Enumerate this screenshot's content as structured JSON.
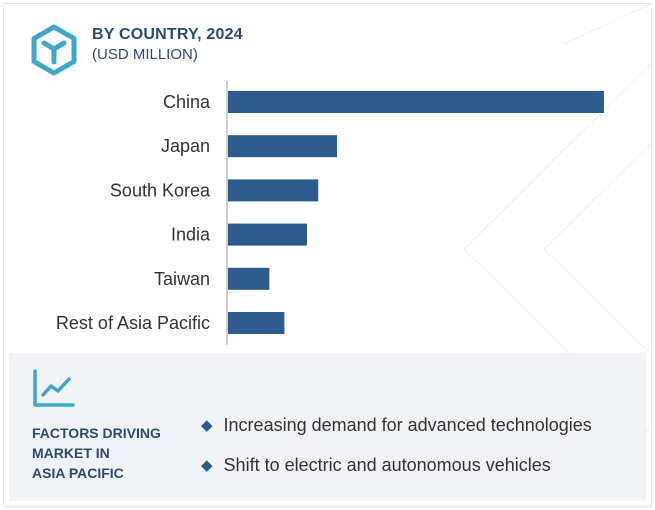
{
  "header": {
    "title": "BY COUNTRY, 2024",
    "subtitle": "(USD MILLION)",
    "logo_icon": "hexagon-cube-icon"
  },
  "colors": {
    "bar": "#2d5b8c",
    "title": "#2d4a73",
    "logo": "#3fa7c9",
    "panel_background": "#f1f3f7"
  },
  "chart_data": {
    "type": "bar",
    "orientation": "horizontal",
    "title": "BY COUNTRY, 2024",
    "subtitle": "(USD MILLION)",
    "categories": [
      "China",
      "Japan",
      "South Korea",
      "India",
      "Taiwan",
      "Rest of Asia Pacific"
    ],
    "values": [
      100,
      29,
      24,
      21,
      11,
      15
    ],
    "xlim": [
      0,
      100
    ],
    "value_axis_labels_shown": false,
    "grid": false,
    "legend": "none"
  },
  "factors": {
    "icon": "trend-chart-icon",
    "heading_lines": [
      "FACTORS DRIVING",
      "MARKET IN",
      "ASIA PACIFIC"
    ],
    "bullet_icon": "diamond-bullet-icon",
    "items": [
      "Increasing demand for advanced technologies",
      "Shift to electric and autonomous vehicles"
    ]
  }
}
